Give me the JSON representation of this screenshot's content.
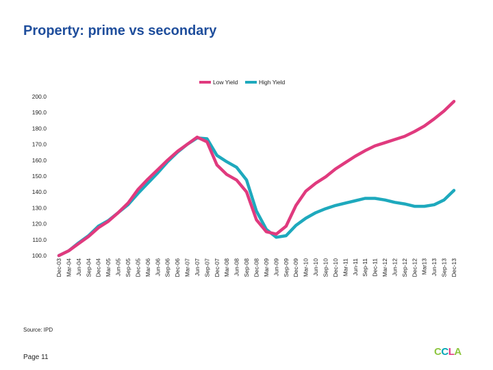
{
  "title": "Property: prime vs secondary",
  "source": "Source: IPD",
  "page_label": "Page 11",
  "logo": {
    "letters": [
      "C",
      "C",
      "L",
      "A"
    ],
    "colors": [
      "#8dc63f",
      "#00a6b6",
      "#e23d84",
      "#8dc63f"
    ]
  },
  "chart_data": {
    "type": "line",
    "title": "",
    "xlabel": "",
    "ylabel": "",
    "ylim": [
      100,
      200
    ],
    "yticks": [
      "100.0",
      "110.0",
      "120.0",
      "130.0",
      "140.0",
      "150.0",
      "160.0",
      "170.0",
      "180.0",
      "190.0",
      "200.0"
    ],
    "legend_position": "top-center",
    "categories": [
      "Dec-03",
      "Mar-04",
      "Jun-04",
      "Sep-04",
      "Dec-04",
      "Mar-05",
      "Jun-05",
      "Sep-05",
      "Dec-05",
      "Mar-06",
      "Jun-06",
      "Sep-06",
      "Dec-06",
      "Mar-07",
      "Jun-07",
      "Sep-07",
      "Dec-07",
      "Mar-08",
      "Jun-08",
      "Sep-08",
      "Dec-08",
      "Mar-09",
      "Jun-09",
      "Sep-09",
      "Dec-09",
      "Mar-10",
      "Jun-10",
      "Sep-10",
      "Dec-10",
      "Mar-11",
      "Jun-11",
      "Sep-11",
      "Dec-11",
      "Mar-12",
      "Jun-12",
      "Sep-12",
      "Dec-12",
      "Mar13",
      "Jun-13",
      "Sep-13",
      "Dec-13"
    ],
    "series": [
      {
        "name": "Low Yield",
        "color": "#e03a7e",
        "values": [
          100.0,
          103.0,
          107.5,
          112.0,
          117.5,
          121.5,
          127.0,
          133.0,
          141.5,
          148.0,
          154.0,
          160.0,
          165.5,
          170.0,
          174.5,
          171.5,
          157.0,
          151.0,
          147.5,
          140.0,
          122.5,
          115.0,
          113.5,
          118.5,
          131.5,
          140.5,
          145.5,
          149.5,
          154.5,
          158.5,
          162.5,
          166.0,
          169.0,
          171.0,
          173.0,
          175.0,
          178.0,
          181.5,
          186.0,
          191.0,
          197.0
        ]
      },
      {
        "name": "High Yield",
        "color": "#1ea9bd",
        "values": [
          100.0,
          103.0,
          108.0,
          112.5,
          118.5,
          122.0,
          127.0,
          132.0,
          139.0,
          145.5,
          152.0,
          159.0,
          165.0,
          170.0,
          174.0,
          173.5,
          163.0,
          159.0,
          155.5,
          147.5,
          128.0,
          116.5,
          111.5,
          112.5,
          119.0,
          123.5,
          127.0,
          129.5,
          131.5,
          133.0,
          134.5,
          136.0,
          136.0,
          135.0,
          133.5,
          132.5,
          131.0,
          131.0,
          132.0,
          135.0,
          141.0
        ]
      }
    ]
  }
}
